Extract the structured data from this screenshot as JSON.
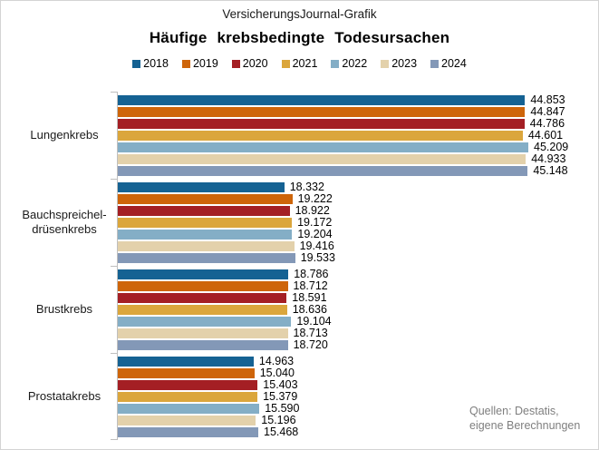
{
  "header": {
    "brand": "VersicherungsJournal-Grafik",
    "title": "Häufige krebsbedingte Todesursachen"
  },
  "source": {
    "lines": [
      "Quellen: Destatis,",
      "eigene Berechnungen"
    ]
  },
  "chart_data": {
    "type": "bar",
    "orientation": "horizontal",
    "title": "Häufige krebsbedingte Todesursachen",
    "legend_position": "top",
    "grid": false,
    "value_axis_labels_visible": false,
    "xlim": [
      0,
      45209
    ],
    "categories": [
      "Lungenkrebs",
      "Bauchspreichel-drüsenkrebs",
      "Brustkrebs",
      "Prostatakrebs"
    ],
    "category_lines": [
      [
        "Lungenkrebs"
      ],
      [
        "Bauchspreichel-",
        "drüsenkrebs"
      ],
      [
        "Brustkrebs"
      ],
      [
        "Prostatakrebs"
      ]
    ],
    "series": [
      {
        "name": "2018",
        "color": "#156293",
        "values": [
          44853,
          18332,
          18786,
          14963
        ],
        "labels": [
          "44.853",
          "18.332",
          "18.786",
          "14.963"
        ]
      },
      {
        "name": "2019",
        "color": "#CE650A",
        "values": [
          44847,
          19222,
          18712,
          15040
        ],
        "labels": [
          "44.847",
          "19.222",
          "18.712",
          "15.040"
        ]
      },
      {
        "name": "2020",
        "color": "#A41F24",
        "values": [
          44786,
          18922,
          18591,
          15403
        ],
        "labels": [
          "44.786",
          "18.922",
          "18.591",
          "15.403"
        ]
      },
      {
        "name": "2021",
        "color": "#DBA63C",
        "values": [
          44601,
          19172,
          18636,
          15379
        ],
        "labels": [
          "44.601",
          "19.172",
          "18.636",
          "15.379"
        ]
      },
      {
        "name": "2022",
        "color": "#84AEC6",
        "values": [
          45209,
          19204,
          19104,
          15590
        ],
        "labels": [
          "45.209",
          "19.204",
          "19.104",
          "15.590"
        ]
      },
      {
        "name": "2023",
        "color": "#E3D1AB",
        "values": [
          44933,
          19416,
          18713,
          15196
        ],
        "labels": [
          "44.933",
          "19.416",
          "18.713",
          "15.196"
        ]
      },
      {
        "name": "2024",
        "color": "#8398B7",
        "values": [
          45148,
          19533,
          18720,
          15468
        ],
        "labels": [
          "45.148",
          "19.533",
          "18.720",
          "15.468"
        ]
      }
    ]
  }
}
